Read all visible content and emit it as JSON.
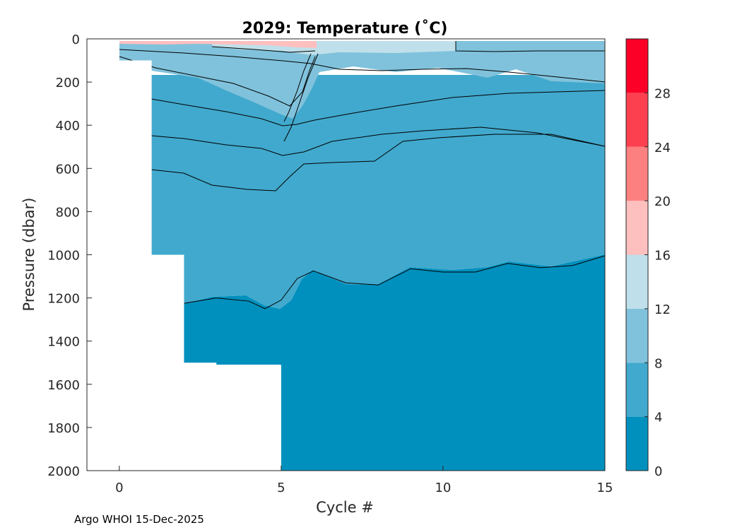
{
  "chart_data": {
    "type": "contour",
    "title": "2029:  Temperature (˚C)",
    "xlabel": "Cycle #",
    "ylabel": "Pressure (dbar)",
    "xlim": [
      -1,
      15
    ],
    "ylim": [
      0,
      2000
    ],
    "y_reversed": true,
    "x_ticks": [
      0,
      5,
      10,
      15
    ],
    "y_ticks": [
      0,
      200,
      400,
      600,
      800,
      1000,
      1200,
      1400,
      1600,
      1800,
      2000
    ],
    "colorbar": {
      "range": [
        0,
        32
      ],
      "ticks": [
        0,
        4,
        8,
        12,
        16,
        20,
        24,
        28
      ],
      "bands": [
        {
          "from": 0,
          "to": 4,
          "color": "#0090BE"
        },
        {
          "from": 4,
          "to": 8,
          "color": "#41A9CD"
        },
        {
          "from": 8,
          "to": 12,
          "color": "#80C2DC"
        },
        {
          "from": 12,
          "to": 16,
          "color": "#BFE0EA"
        },
        {
          "from": 16,
          "to": 20,
          "color": "#FEBFBF"
        },
        {
          "from": 20,
          "to": 24,
          "color": "#FD8080"
        },
        {
          "from": 24,
          "to": 28,
          "color": "#FC4050"
        },
        {
          "from": 28,
          "to": 32,
          "color": "#FC0028"
        }
      ]
    },
    "max_profile_depth": [
      {
        "cycle": 0,
        "pressure": 100
      },
      {
        "cycle": 1,
        "pressure": 1000
      },
      {
        "cycle": 2,
        "pressure": 1500
      },
      {
        "cycle": 3,
        "pressure": 1510
      },
      {
        "cycle": 4,
        "pressure": 1510
      },
      {
        "cycle": 5,
        "pressure": 2000
      },
      {
        "cycle": 15,
        "pressure": 2000
      }
    ],
    "isotherm_4C": [
      {
        "cycle": 2,
        "pressure": 1225
      },
      {
        "cycle": 3,
        "pressure": 1200
      },
      {
        "cycle": 4,
        "pressure": 1215
      },
      {
        "cycle": 4.5,
        "pressure": 1250
      },
      {
        "cycle": 5,
        "pressure": 1210
      },
      {
        "cycle": 5.5,
        "pressure": 1110
      },
      {
        "cycle": 6,
        "pressure": 1075
      },
      {
        "cycle": 7,
        "pressure": 1130
      },
      {
        "cycle": 8,
        "pressure": 1140
      },
      {
        "cycle": 9,
        "pressure": 1065
      },
      {
        "cycle": 10,
        "pressure": 1080
      },
      {
        "cycle": 11,
        "pressure": 1080
      },
      {
        "cycle": 12,
        "pressure": 1040
      },
      {
        "cycle": 13,
        "pressure": 1060
      },
      {
        "cycle": 14,
        "pressure": 1050
      },
      {
        "cycle": 15,
        "pressure": 1005
      }
    ]
  },
  "footer": "Argo WHOI 15-Dec-2025"
}
